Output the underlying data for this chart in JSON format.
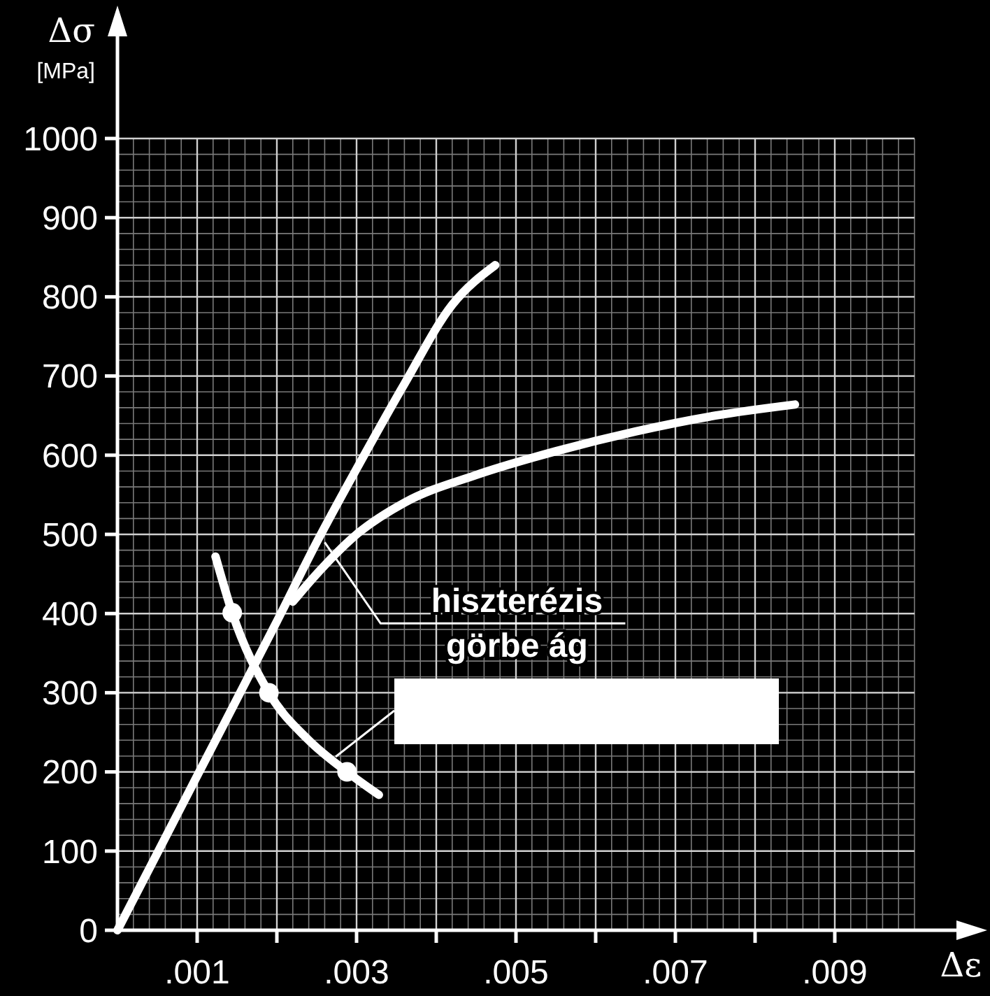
{
  "chart_data": {
    "type": "line",
    "xlabel": "Δε",
    "ylabel": "Δσ\n[MPa]",
    "xlim": [
      0,
      0.01
    ],
    "ylim": [
      0,
      1000
    ],
    "xticks": [
      {
        "value": 0.001,
        "label": ".001"
      },
      {
        "value": 0.002,
        "label": null
      },
      {
        "value": 0.003,
        "label": ".003"
      },
      {
        "value": 0.004,
        "label": null
      },
      {
        "value": 0.005,
        "label": ".005"
      },
      {
        "value": 0.006,
        "label": null
      },
      {
        "value": 0.007,
        "label": ".007"
      },
      {
        "value": 0.008,
        "label": null
      },
      {
        "value": 0.009,
        "label": ".009"
      }
    ],
    "yticks": [
      0,
      100,
      200,
      300,
      400,
      500,
      600,
      700,
      800,
      900,
      1000
    ],
    "grid": true,
    "line_style": "solid",
    "series": [
      {
        "color": "#ffffff",
        "x": [
          0,
          0.001,
          0.002,
          0.0025,
          0.00304,
          0.0036,
          0.0042,
          0.00474
        ],
        "values": [
          0,
          195,
          390,
          490,
          590,
          690,
          790,
          840
        ]
      },
      {
        "color": "#ffffff",
        "x": [
          0.0022,
          0.0025,
          0.003,
          0.0036,
          0.0045,
          0.0055,
          0.0065,
          0.0075,
          0.0085
        ],
        "values": [
          415,
          450,
          500,
          540,
          575,
          605,
          630,
          650,
          664
        ]
      },
      {
        "color": "#ffffff",
        "x": [
          0.00123,
          0.00144,
          0.0019,
          0.0024,
          0.00288,
          0.00328
        ],
        "values": [
          472,
          401,
          300,
          240,
          200,
          171
        ]
      },
      {
        "type": "scatter",
        "marker": "circle",
        "color": "#ffffff",
        "x": [
          0.00144,
          0.0019,
          0.00288
        ],
        "values": [
          401,
          300,
          200
        ]
      }
    ],
    "annotations": [
      {
        "text": "hiszterézis\ngörbe ág",
        "x": 0.0026,
        "y": 490
      }
    ]
  }
}
